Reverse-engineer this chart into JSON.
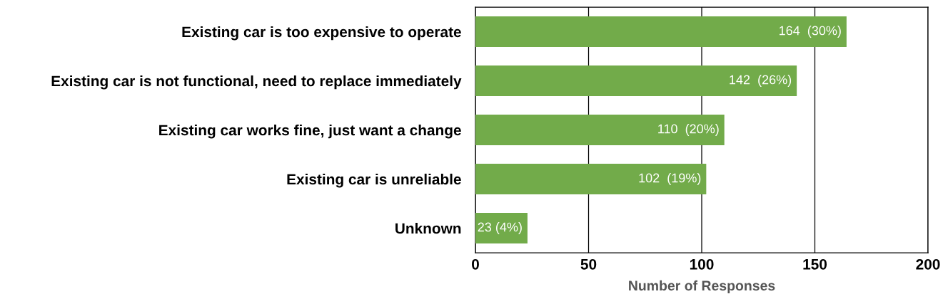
{
  "chart_data": {
    "type": "bar",
    "orientation": "horizontal",
    "xlabel": "Number of Responses",
    "categories": [
      "Existing car is too expensive to operate",
      "Existing car is not functional, need to replace immediately",
      "Existing car works fine, just want a change",
      "Existing car is unreliable",
      "Unknown"
    ],
    "values": [
      164,
      142,
      110,
      102,
      23
    ],
    "value_labels": [
      "164  (30%)",
      "142  (26%)",
      "110  (20%)",
      "102  (19%)",
      "23 (4%)"
    ],
    "color": "#72ab4a",
    "xlim": [
      0,
      200
    ],
    "xticks": [
      0,
      50,
      100,
      150,
      200
    ],
    "grid": "x"
  }
}
